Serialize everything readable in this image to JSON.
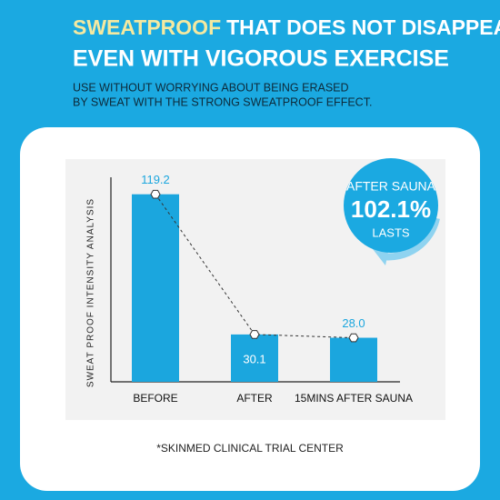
{
  "chart_data": {
    "type": "bar",
    "title": [
      "SWEATPROOF",
      "THAT DOES NOT DISAPPEAR",
      "EVEN WITH VIGOROUS EXERCISE"
    ],
    "subtitle": [
      "USE WITHOUT WORRYING ABOUT BEING ERASED",
      "BY SWEAT WITH THE STRONG SWEATPROOF EFFECT."
    ],
    "ylabel": "SWEAT PROOF INTENSITY ANALYSIS",
    "categories": [
      "BEFORE",
      "AFTER",
      "15MINS AFTER SAUNA"
    ],
    "values": [
      119.2,
      30.1,
      28.0
    ],
    "value_labels": [
      "119.2",
      "30.1",
      "28.0"
    ],
    "color": "#1ba6de",
    "ylim": [
      0,
      130
    ],
    "annotation": [
      "AFTER SAUNA",
      "102.1%",
      "LASTS"
    ],
    "footnote": "*SKINMED CLINICAL TRIAL CENTER"
  }
}
